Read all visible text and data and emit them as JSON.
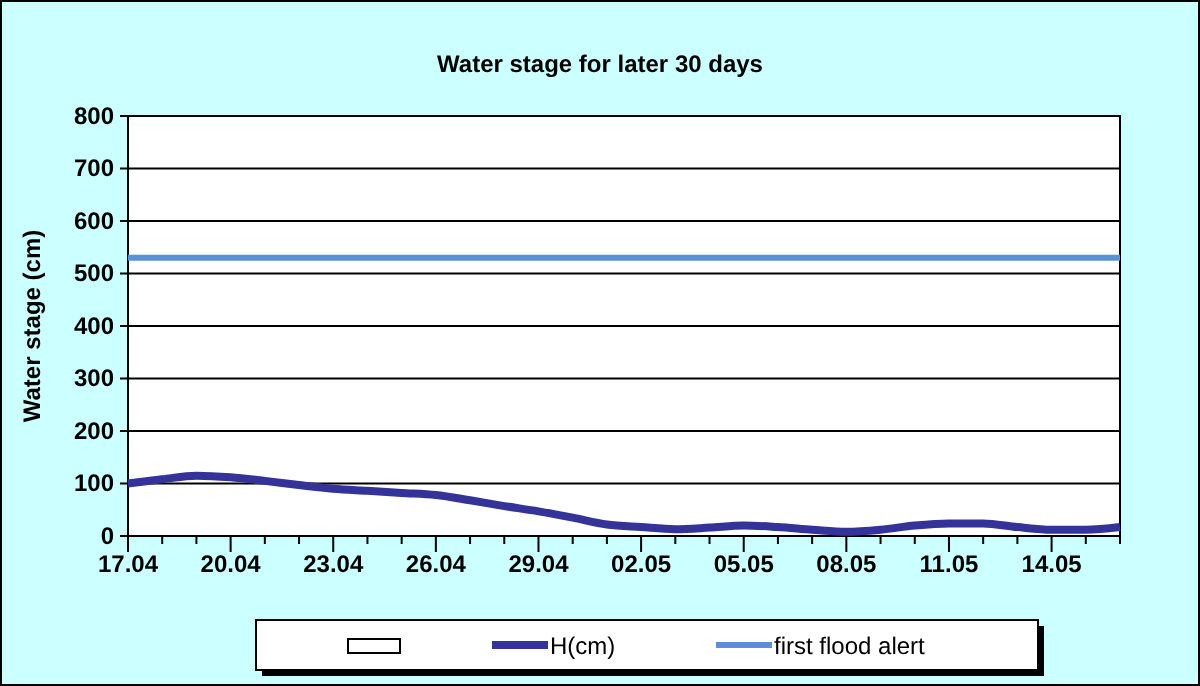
{
  "chart_data": {
    "type": "line",
    "title": "Water stage for later 30 days",
    "ylabel": "Water stage (cm)",
    "categories": [
      "17.04",
      null,
      null,
      "20.04",
      null,
      null,
      "23.04",
      null,
      null,
      "26.04",
      null,
      null,
      "29.04",
      null,
      null,
      "02.05",
      null,
      null,
      "05.05",
      null,
      null,
      "08.05",
      null,
      null,
      "11.05",
      null,
      null,
      "14.05",
      null,
      null
    ],
    "series": [
      {
        "name": "H(cm)",
        "color": "#333399",
        "values": [
          100,
          108,
          115,
          112,
          105,
          97,
          90,
          86,
          82,
          78,
          68,
          57,
          47,
          35,
          22,
          17,
          13,
          16,
          20,
          17,
          12,
          8,
          12,
          20,
          24,
          24,
          17,
          12,
          12,
          17
        ]
      }
    ],
    "ref_lines": [
      {
        "axis": "y",
        "value": 530,
        "label": "first flood alert",
        "color": "#5b8fd8"
      }
    ],
    "ylim": [
      0,
      800
    ],
    "yticks": [
      0,
      100,
      200,
      300,
      400,
      500,
      600,
      700,
      800
    ],
    "grid": "y",
    "legend": "bottom",
    "marker": "none",
    "line_style": "solid"
  }
}
